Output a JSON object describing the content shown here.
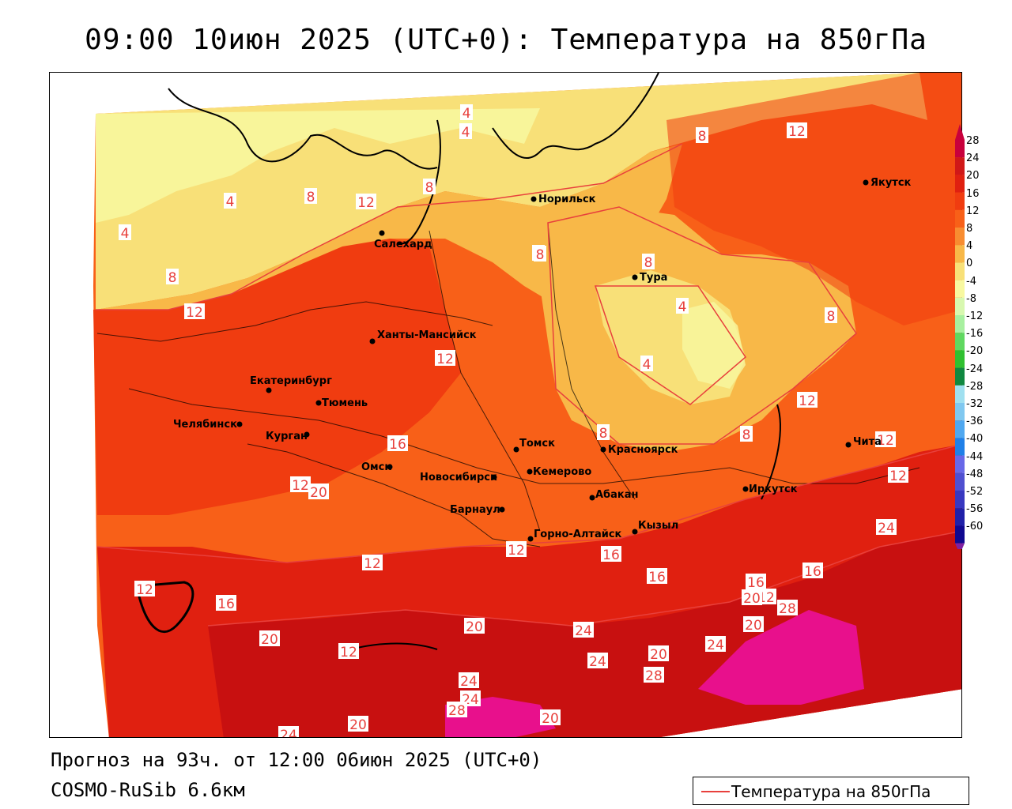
{
  "title": "09:00 10июн 2025 (UTC+0): Температура на 850гПа",
  "footer": {
    "forecast": "Прогноз на 93ч. от 12:00 06июн 2025 (UTC+0)",
    "model": "COSMO-RuSib 6.6км"
  },
  "legend": {
    "label": "Температура на 850гПа",
    "line_color": "#e8403c"
  },
  "colorbar": {
    "levels": [
      28,
      24,
      20,
      16,
      12,
      8,
      4,
      0,
      -4,
      -8,
      -12,
      -16,
      -20,
      -24,
      -28,
      -32,
      -36,
      -40,
      -44,
      -48,
      -52,
      -56,
      -60
    ],
    "colors": [
      "#c8003c",
      "#d01818",
      "#e02010",
      "#f03c10",
      "#f86018",
      "#f88c30",
      "#f8b848",
      "#f8e078",
      "#f8f8a0",
      "#d8f8b0",
      "#a8f0a0",
      "#60d860",
      "#30c030",
      "#108840",
      "#a0e0f0",
      "#80c8f0",
      "#50a8f0",
      "#2080e8",
      "#6868e8",
      "#5050d0",
      "#3838c0",
      "#2020a8",
      "#100890"
    ]
  },
  "cities": [
    {
      "name": "Норильск"
    },
    {
      "name": "Якутск"
    },
    {
      "name": "Салехард"
    },
    {
      "name": "Тура"
    },
    {
      "name": "Ханты-Мансийск"
    },
    {
      "name": "Екатеринбург"
    },
    {
      "name": "Тюмень"
    },
    {
      "name": "Челябинск"
    },
    {
      "name": "Курган"
    },
    {
      "name": "Омск"
    },
    {
      "name": "Новосибирск"
    },
    {
      "name": "Томск"
    },
    {
      "name": "Кемерово"
    },
    {
      "name": "Красноярск"
    },
    {
      "name": "Абакан"
    },
    {
      "name": "Барнаул"
    },
    {
      "name": "Горно-Алтайск"
    },
    {
      "name": "Кызыл"
    },
    {
      "name": "Иркутск"
    },
    {
      "name": "Чита"
    }
  ],
  "contour_labels": [
    "4",
    "8",
    "12",
    "8",
    "4",
    "8",
    "8",
    "12",
    "4",
    "8",
    "12",
    "8",
    "4",
    "8",
    "4",
    "8",
    "12",
    "12",
    "12",
    "12",
    "8",
    "8",
    "12",
    "16",
    "20",
    "24",
    "12",
    "12",
    "16",
    "16",
    "12",
    "12",
    "12",
    "16",
    "16",
    "20",
    "20",
    "24",
    "12",
    "16",
    "20",
    "28",
    "20",
    "24",
    "20",
    "28",
    "24",
    "24",
    "24",
    "28",
    "20",
    "20",
    "24",
    "4"
  ]
}
